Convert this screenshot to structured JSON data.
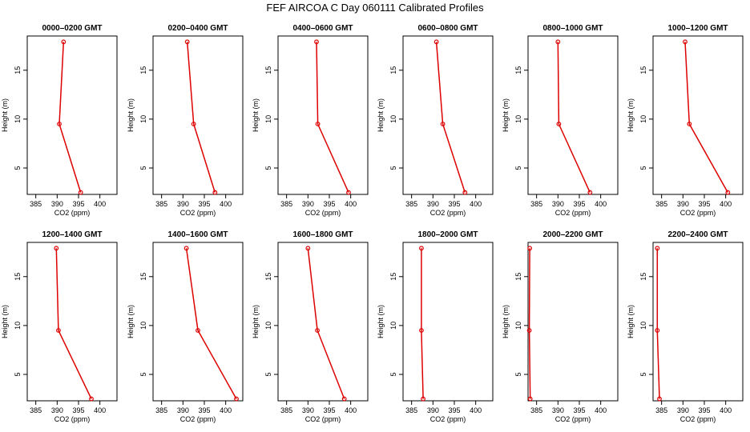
{
  "chart_data": {
    "type": "line",
    "title": "FEF AIRCOA C  Day 060111  Calibrated Profiles",
    "xlabel": "CO2 (ppm)",
    "ylabel": "Height (m)",
    "xlim": [
      383,
      404
    ],
    "ylim": [
      2.3,
      18.5
    ],
    "x_ticks": [
      385,
      390,
      395,
      400
    ],
    "y_ticks": [
      5,
      10,
      15
    ],
    "heights": [
      2.5,
      9.5,
      17.9
    ],
    "colors": {
      "series": "#dd0000",
      "axes": "#000000"
    },
    "panels": [
      {
        "title": "0000–0200 GMT",
        "co2": [
          395.5,
          390.5,
          391.5
        ]
      },
      {
        "title": "0200–0400 GMT",
        "co2": [
          397.5,
          392.5,
          391.0
        ]
      },
      {
        "title": "0400–0600 GMT",
        "co2": [
          399.5,
          392.3,
          392.0
        ]
      },
      {
        "title": "0600–0800 GMT",
        "co2": [
          397.5,
          392.3,
          390.8
        ]
      },
      {
        "title": "0800–1000 GMT",
        "co2": [
          397.5,
          390.2,
          390.0
        ]
      },
      {
        "title": "1000–1200 GMT",
        "co2": [
          400.5,
          391.5,
          390.5
        ]
      },
      {
        "title": "1200–1400 GMT",
        "co2": [
          398.0,
          390.3,
          389.8
        ]
      },
      {
        "title": "1400–1600 GMT",
        "co2": [
          402.5,
          393.5,
          390.8
        ]
      },
      {
        "title": "1600–1800 GMT",
        "co2": [
          398.5,
          392.2,
          390.0
        ]
      },
      {
        "title": "1800–2000 GMT",
        "co2": [
          387.7,
          387.3,
          387.3
        ]
      },
      {
        "title": "2000–2200 GMT",
        "co2": [
          383.5,
          383.3,
          383.4
        ]
      },
      {
        "title": "2200–2400 GMT",
        "co2": [
          384.5,
          384.0,
          384.0
        ]
      }
    ]
  }
}
